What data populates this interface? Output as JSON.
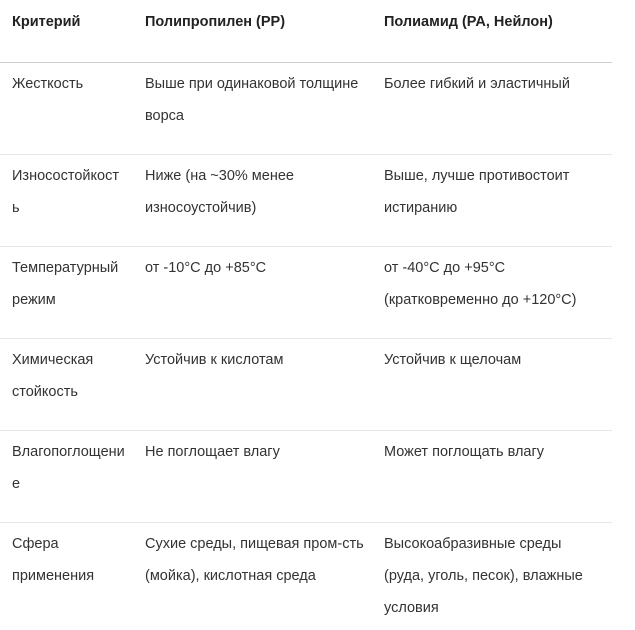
{
  "table": {
    "headers": [
      "Критерий",
      "Полипропилен (PP)",
      "Полиамид (PA, Нейлон)"
    ],
    "rows": [
      [
        "Жесткость",
        "Выше при одинаковой толщине ворса",
        "Более гибкий и эластичный"
      ],
      [
        "Износостойкость",
        "Ниже (на ~30% менее износоустойчив)",
        "Выше, лучше противостоит истиранию"
      ],
      [
        "Температурный режим",
        "от -10°C до +85°C",
        "от -40°C до +95°C (кратковременно до +120°C)"
      ],
      [
        "Химическая стойкость",
        "Устойчив к кислотам",
        "Устойчив к щелочам"
      ],
      [
        "Влагопоглощение",
        "Не поглощает влагу",
        "Может поглощать влагу"
      ],
      [
        "Сфера применения",
        "Сухие среды, пищевая пром-сть (мойка), кислотная среда",
        "Высокоабразивные среды (руда, уголь, песок), влажные условия"
      ]
    ]
  }
}
